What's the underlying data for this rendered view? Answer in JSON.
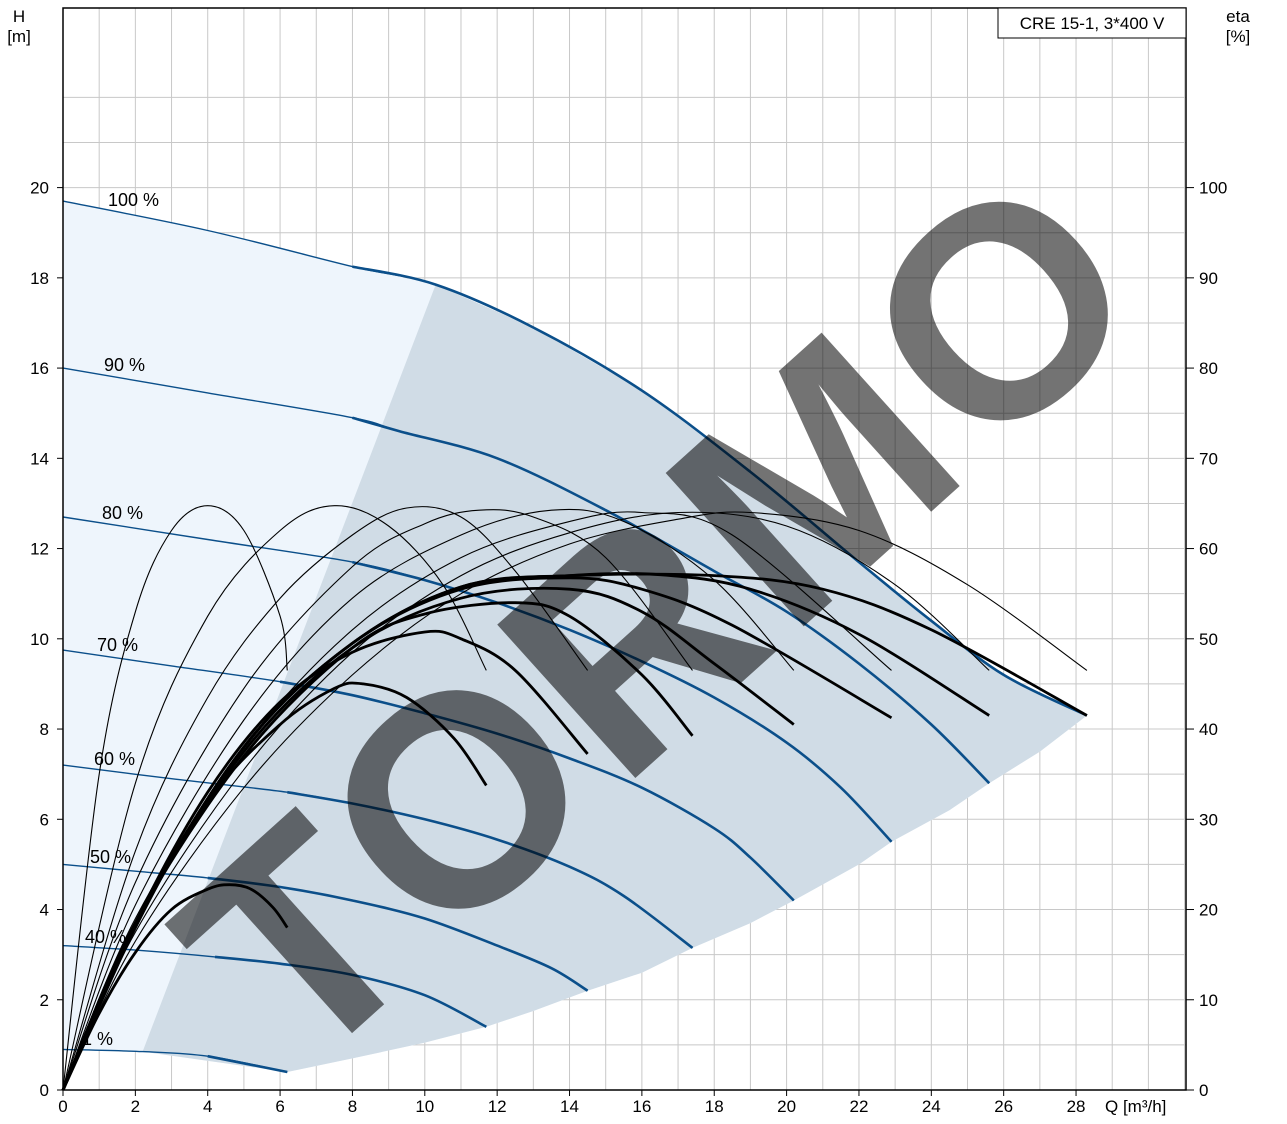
{
  "chart_data": {
    "type": "line",
    "title": "CRE 15-1, 3*400 V",
    "ylabel": "H",
    "yunit": "[m]",
    "y2label": "eta",
    "y2unit": "[%]",
    "xlabel": "Q [m³/h]",
    "xlim": [
      0,
      31
    ],
    "ylim": [
      0,
      24
    ],
    "y2lim": [
      0,
      100
    ],
    "xticks": [
      0,
      2,
      4,
      6,
      8,
      10,
      12,
      14,
      16,
      18,
      20,
      22,
      24,
      26,
      28
    ],
    "yticks": [
      0,
      2,
      4,
      6,
      8,
      10,
      12,
      14,
      16,
      18,
      20
    ],
    "y2ticks": [
      0,
      10,
      20,
      30,
      40,
      50,
      60,
      70,
      80,
      90,
      100
    ],
    "grid": true,
    "colors": {
      "head_curve": "#0b4f8a",
      "outer_region": "#eef5fc",
      "operating_region": "#d0dce6",
      "efficiency_curve": "#000000",
      "watermark": "#c8c8c8",
      "grid": "#c8c8c8"
    },
    "watermark_text": "TORMO",
    "operating_region_boundary": [
      [
        2.2,
        0.85
      ],
      [
        6.2,
        0.4
      ],
      [
        8,
        0.7
      ],
      [
        10,
        1.05
      ],
      [
        11.7,
        1.4
      ],
      [
        13,
        1.75
      ],
      [
        14.5,
        2.2
      ],
      [
        16,
        2.6
      ],
      [
        17.4,
        3.15
      ],
      [
        19,
        3.7
      ],
      [
        20.2,
        4.2
      ],
      [
        22,
        5
      ],
      [
        22.9,
        5.5
      ],
      [
        24.5,
        6.2
      ],
      [
        25.6,
        6.8
      ],
      [
        27,
        7.5
      ],
      [
        28.3,
        8.3
      ]
    ],
    "speed_curves": [
      {
        "name": "100 %",
        "points": [
          [
            0,
            19.7
          ],
          [
            4,
            19.05
          ],
          [
            8,
            18.25
          ],
          [
            10.3,
            17.85
          ],
          [
            13,
            16.9
          ],
          [
            16,
            15.5
          ],
          [
            19,
            13.7
          ],
          [
            22,
            11.7
          ],
          [
            24,
            10.4
          ],
          [
            26,
            9.2
          ],
          [
            28.3,
            8.3
          ]
        ]
      },
      {
        "name": "90 %",
        "points": [
          [
            0,
            16.0
          ],
          [
            4,
            15.45
          ],
          [
            8,
            14.9
          ],
          [
            9.3,
            14.6
          ],
          [
            12,
            14.0
          ],
          [
            15,
            12.85
          ],
          [
            18,
            11.5
          ],
          [
            20,
            10.6
          ],
          [
            22,
            9.45
          ],
          [
            24,
            8.1
          ],
          [
            25.6,
            6.8
          ]
        ]
      },
      {
        "name": "80 %",
        "points": [
          [
            0,
            12.7
          ],
          [
            4,
            12.2
          ],
          [
            8,
            11.7
          ],
          [
            10,
            11.3
          ],
          [
            12,
            10.8
          ],
          [
            14,
            10.2
          ],
          [
            16,
            9.5
          ],
          [
            18,
            8.7
          ],
          [
            20,
            7.7
          ],
          [
            21.5,
            6.7
          ],
          [
            22.9,
            5.5
          ]
        ]
      },
      {
        "name": "70 %",
        "points": [
          [
            0,
            9.75
          ],
          [
            3,
            9.4
          ],
          [
            6,
            9.05
          ],
          [
            8,
            8.75
          ],
          [
            10,
            8.35
          ],
          [
            12,
            7.9
          ],
          [
            14,
            7.35
          ],
          [
            16,
            6.7
          ],
          [
            18,
            5.8
          ],
          [
            19,
            5.15
          ],
          [
            20.2,
            4.2
          ]
        ]
      },
      {
        "name": "60 %",
        "points": [
          [
            0,
            7.2
          ],
          [
            3,
            6.9
          ],
          [
            6.2,
            6.6
          ],
          [
            8,
            6.35
          ],
          [
            10,
            6.0
          ],
          [
            12,
            5.55
          ],
          [
            14,
            4.95
          ],
          [
            15.5,
            4.3
          ],
          [
            17.4,
            3.15
          ]
        ]
      },
      {
        "name": "50 %",
        "points": [
          [
            0,
            5.0
          ],
          [
            2,
            4.85
          ],
          [
            4,
            4.7
          ],
          [
            6,
            4.5
          ],
          [
            8,
            4.2
          ],
          [
            10,
            3.8
          ],
          [
            12,
            3.2
          ],
          [
            13.5,
            2.7
          ],
          [
            14.5,
            2.2
          ]
        ]
      },
      {
        "name": "40 %",
        "points": [
          [
            0,
            3.2
          ],
          [
            2,
            3.1
          ],
          [
            4.2,
            2.95
          ],
          [
            6,
            2.8
          ],
          [
            8,
            2.55
          ],
          [
            10,
            2.1
          ],
          [
            11.7,
            1.4
          ]
        ]
      },
      {
        "name": "1 %",
        "points": [
          [
            0,
            0.9
          ],
          [
            2.2,
            0.85
          ],
          [
            4,
            0.75
          ],
          [
            6.2,
            0.4
          ]
        ]
      }
    ],
    "efficiency_curves": [
      {
        "bold": false,
        "points": [
          [
            0,
            0
          ],
          [
            1,
            7.0
          ],
          [
            2,
            10.6
          ],
          [
            3,
            12.4
          ],
          [
            4,
            12.95
          ],
          [
            5,
            12.4
          ],
          [
            6,
            10.5
          ],
          [
            6.2,
            9.3
          ]
        ]
      },
      {
        "bold": false,
        "points": [
          [
            0,
            0
          ],
          [
            2,
            6.8
          ],
          [
            4,
            10.5
          ],
          [
            6,
            12.4
          ],
          [
            7.5,
            12.95
          ],
          [
            9,
            12.5
          ],
          [
            10.5,
            11.2
          ],
          [
            11.7,
            9.3
          ]
        ]
      },
      {
        "bold": false,
        "points": [
          [
            0,
            0
          ],
          [
            2,
            5.3
          ],
          [
            4,
            8.7
          ],
          [
            6,
            10.9
          ],
          [
            8,
            12.3
          ],
          [
            9.5,
            12.9
          ],
          [
            11,
            12.7
          ],
          [
            12.5,
            11.5
          ],
          [
            14.5,
            9.3
          ]
        ]
      },
      {
        "bold": false,
        "points": [
          [
            0,
            0
          ],
          [
            2,
            4.6
          ],
          [
            5,
            8.9
          ],
          [
            8,
            11.6
          ],
          [
            10,
            12.55
          ],
          [
            11.5,
            12.85
          ],
          [
            13,
            12.7
          ],
          [
            15,
            11.8
          ],
          [
            17.4,
            9.3
          ]
        ]
      },
      {
        "bold": false,
        "points": [
          [
            0,
            0
          ],
          [
            2,
            4.1
          ],
          [
            5,
            8.2
          ],
          [
            8,
            10.9
          ],
          [
            11,
            12.3
          ],
          [
            13.5,
            12.85
          ],
          [
            15.5,
            12.6
          ],
          [
            18,
            11.3
          ],
          [
            20.2,
            9.3
          ]
        ]
      },
      {
        "bold": false,
        "points": [
          [
            0,
            0
          ],
          [
            2,
            3.8
          ],
          [
            5,
            7.6
          ],
          [
            8,
            10.2
          ],
          [
            11,
            11.8
          ],
          [
            14,
            12.6
          ],
          [
            16,
            12.8
          ],
          [
            18.5,
            12.3
          ],
          [
            22.9,
            9.3
          ]
        ]
      },
      {
        "bold": false,
        "points": [
          [
            0,
            0
          ],
          [
            2,
            3.5
          ],
          [
            5,
            7.1
          ],
          [
            8,
            9.7
          ],
          [
            11,
            11.4
          ],
          [
            14,
            12.35
          ],
          [
            17,
            12.8
          ],
          [
            20,
            12.5
          ],
          [
            23,
            11.2
          ],
          [
            25.6,
            9.3
          ]
        ]
      },
      {
        "bold": false,
        "points": [
          [
            0,
            0
          ],
          [
            2,
            3.3
          ],
          [
            5,
            6.7
          ],
          [
            8,
            9.2
          ],
          [
            11,
            11.0
          ],
          [
            14,
            12.1
          ],
          [
            17,
            12.65
          ],
          [
            19,
            12.8
          ],
          [
            22,
            12.4
          ],
          [
            25,
            11.2
          ],
          [
            28.3,
            9.3
          ]
        ]
      },
      {
        "bold": true,
        "points": [
          [
            0,
            0
          ],
          [
            1,
            1.7
          ],
          [
            2,
            3.05
          ],
          [
            3,
            4.0
          ],
          [
            4,
            4.45
          ],
          [
            4.6,
            4.55
          ],
          [
            5.2,
            4.45
          ],
          [
            5.8,
            4.05
          ],
          [
            6.2,
            3.6
          ]
        ]
      },
      {
        "bold": true,
        "points": [
          [
            0,
            0
          ],
          [
            2,
            3.6
          ],
          [
            4,
            6.4
          ],
          [
            6,
            8.1
          ],
          [
            7.5,
            8.9
          ],
          [
            8.3,
            9.0
          ],
          [
            9.5,
            8.7
          ],
          [
            10.8,
            7.8
          ],
          [
            11.7,
            6.75
          ]
        ]
      },
      {
        "bold": true,
        "points": [
          [
            0,
            0
          ],
          [
            2,
            3.7
          ],
          [
            4,
            6.6
          ],
          [
            6,
            8.6
          ],
          [
            8,
            9.7
          ],
          [
            10,
            10.15
          ],
          [
            11,
            10.0
          ],
          [
            12.5,
            9.3
          ],
          [
            14.5,
            7.45
          ]
        ]
      },
      {
        "bold": true,
        "points": [
          [
            0,
            0
          ],
          [
            2,
            3.7
          ],
          [
            5,
            7.4
          ],
          [
            8,
            9.8
          ],
          [
            10,
            10.55
          ],
          [
            12.5,
            10.8
          ],
          [
            14,
            10.5
          ],
          [
            16,
            9.2
          ],
          [
            17.4,
            7.85
          ]
        ]
      },
      {
        "bold": true,
        "points": [
          [
            0,
            0
          ],
          [
            2,
            3.7
          ],
          [
            5,
            7.5
          ],
          [
            8,
            9.8
          ],
          [
            11,
            10.9
          ],
          [
            14,
            11.1
          ],
          [
            16,
            10.6
          ],
          [
            18,
            9.45
          ],
          [
            20.2,
            8.1
          ]
        ]
      },
      {
        "bold": true,
        "points": [
          [
            0,
            0
          ],
          [
            2,
            3.7
          ],
          [
            5,
            7.6
          ],
          [
            8,
            9.9
          ],
          [
            11,
            11.1
          ],
          [
            14,
            11.35
          ],
          [
            16,
            11.1
          ],
          [
            18.5,
            10.3
          ],
          [
            22.9,
            8.25
          ]
        ]
      },
      {
        "bold": true,
        "points": [
          [
            0,
            0
          ],
          [
            2,
            3.7
          ],
          [
            5,
            7.6
          ],
          [
            8,
            9.9
          ],
          [
            11,
            11.15
          ],
          [
            14,
            11.4
          ],
          [
            16.5,
            11.42
          ],
          [
            19,
            11.1
          ],
          [
            22,
            10.1
          ],
          [
            25.6,
            8.3
          ]
        ]
      },
      {
        "bold": true,
        "points": [
          [
            0,
            0
          ],
          [
            2,
            3.7
          ],
          [
            5,
            7.6
          ],
          [
            8,
            9.9
          ],
          [
            11,
            11.15
          ],
          [
            14,
            11.4
          ],
          [
            18,
            11.4
          ],
          [
            21,
            11.1
          ],
          [
            24,
            10.2
          ],
          [
            28.3,
            8.3
          ]
        ]
      }
    ]
  }
}
